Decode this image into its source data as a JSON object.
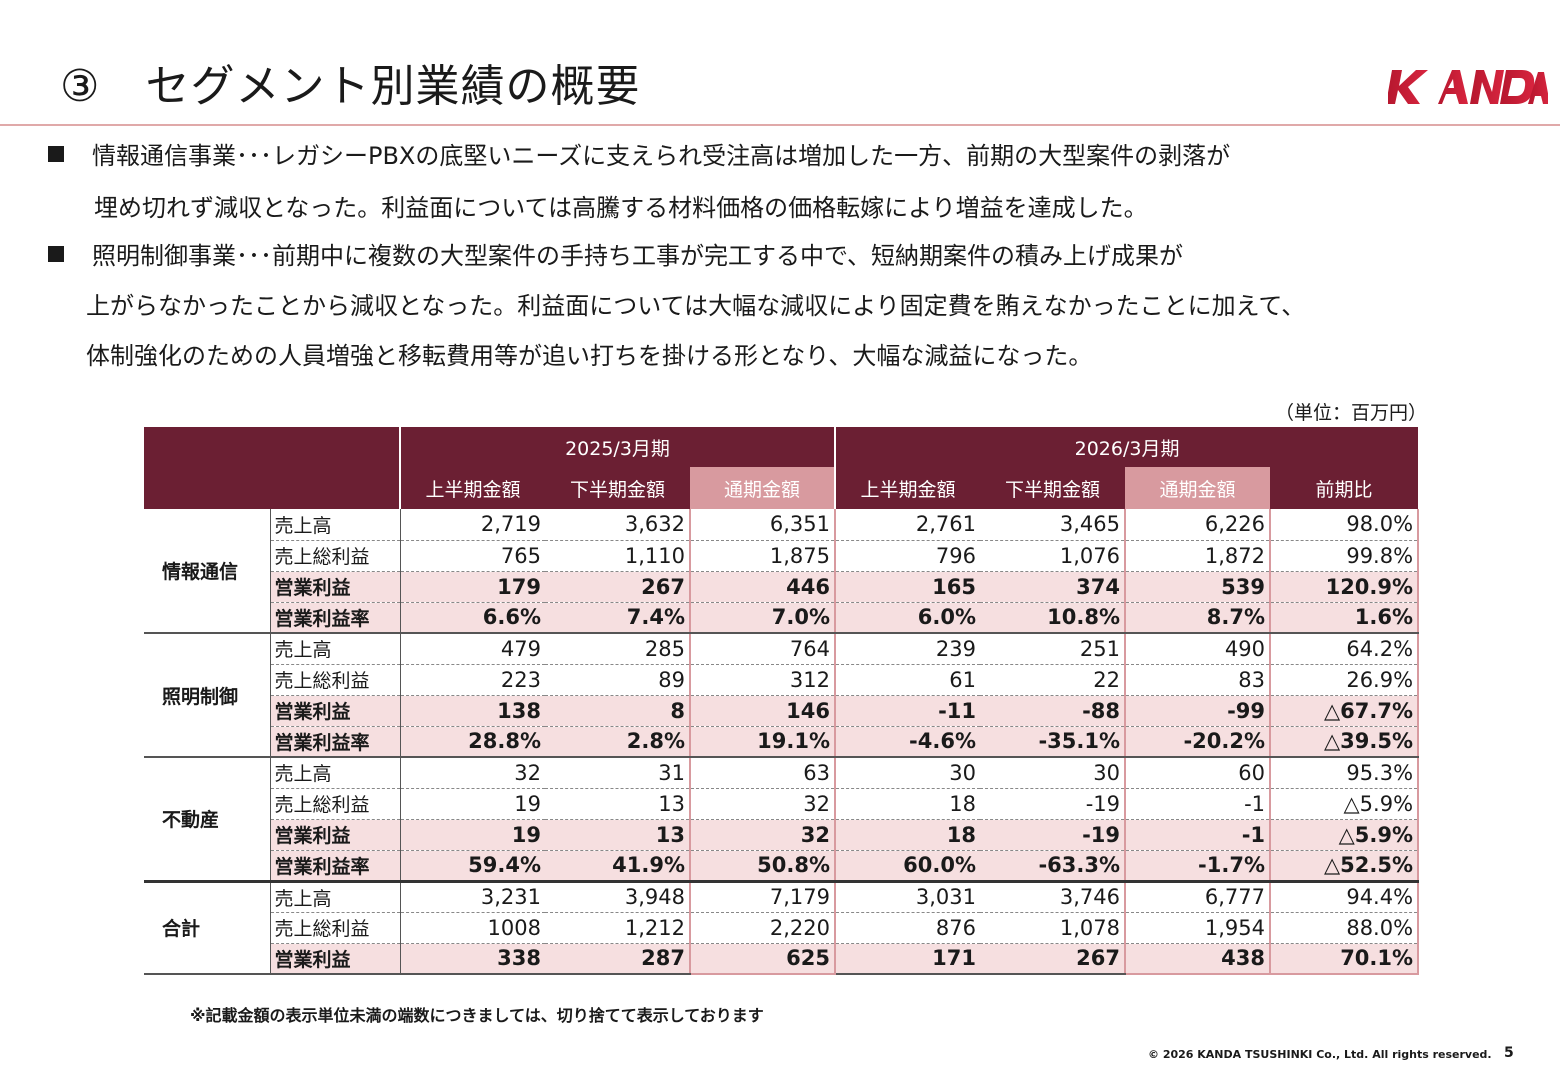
{
  "title": "③　セグメント別業績の概要",
  "logo_text": "KANDA",
  "colors": {
    "accent": "#6b1f33",
    "full_year_header": "#d89a9f",
    "highlight_row": "#f6dfe0",
    "logo": "#c8102e"
  },
  "bullets": [
    {
      "lines": [
        "情報通信事業･･･レガシーPBXの底堅いニーズに支えられ受注高は増加した一方、前期の大型案件の剥落が",
        "埋め切れず減収となった。利益面については高騰する材料価格の価格転嫁により増益を達成した。"
      ]
    },
    {
      "lines": [
        "照明制御事業･･･前期中に複数の大型案件の手持ち工事が完工する中で、短納期案件の積み上げ成果が",
        "上がらなかったことから減収となった。利益面については大幅な減収により固定費を賄えなかったことに加えて、",
        "体制強化のための人員増強と移転費用等が追い打ちを掛ける形となり、大幅な減益になった。"
      ]
    }
  ],
  "unit_label": "（単位：百万円）",
  "table": {
    "periods": [
      "2025/3月期",
      "2026/3月期"
    ],
    "columns": [
      "上半期金額",
      "下半期金額",
      "通期金額",
      "上半期金額",
      "下半期金額",
      "通期金額",
      "前期比"
    ],
    "segments": [
      {
        "name": "情報通信",
        "rows": [
          {
            "label": "売上高",
            "values": [
              "2,719",
              "3,632",
              "6,351",
              "2,761",
              "3,465",
              "6,226",
              "98.0%"
            ]
          },
          {
            "label": "売上総利益",
            "values": [
              "765",
              "1,110",
              "1,875",
              "796",
              "1,076",
              "1,872",
              "99.8%"
            ]
          },
          {
            "label": "営業利益",
            "values": [
              "179",
              "267",
              "446",
              "165",
              "374",
              "539",
              "120.9%"
            ]
          },
          {
            "label": "営業利益率",
            "values": [
              "6.6%",
              "7.4%",
              "7.0%",
              "6.0%",
              "10.8%",
              "8.7%",
              "1.6%"
            ]
          }
        ]
      },
      {
        "name": "照明制御",
        "rows": [
          {
            "label": "売上高",
            "values": [
              "479",
              "285",
              "764",
              "239",
              "251",
              "490",
              "64.2%"
            ]
          },
          {
            "label": "売上総利益",
            "values": [
              "223",
              "89",
              "312",
              "61",
              "22",
              "83",
              "26.9%"
            ]
          },
          {
            "label": "営業利益",
            "values": [
              "138",
              "8",
              "146",
              "-11",
              "-88",
              "-99",
              "△67.7%"
            ]
          },
          {
            "label": "営業利益率",
            "values": [
              "28.8%",
              "2.8%",
              "19.1%",
              "-4.6%",
              "-35.1%",
              "-20.2%",
              "△39.5%"
            ]
          }
        ]
      },
      {
        "name": "不動産",
        "rows": [
          {
            "label": "売上高",
            "values": [
              "32",
              "31",
              "63",
              "30",
              "30",
              "60",
              "95.3%"
            ]
          },
          {
            "label": "売上総利益",
            "values": [
              "19",
              "13",
              "32",
              "18",
              "-19",
              "-1",
              "△5.9%"
            ]
          },
          {
            "label": "営業利益",
            "values": [
              "19",
              "13",
              "32",
              "18",
              "-19",
              "-1",
              "△5.9%"
            ]
          },
          {
            "label": "営業利益率",
            "values": [
              "59.4%",
              "41.9%",
              "50.8%",
              "60.0%",
              "-63.3%",
              "-1.7%",
              "△52.5%"
            ]
          }
        ]
      },
      {
        "name": "合計",
        "rows": [
          {
            "label": "売上高",
            "values": [
              "3,231",
              "3,948",
              "7,179",
              "3,031",
              "3,746",
              "6,777",
              "94.4%"
            ]
          },
          {
            "label": "売上総利益",
            "values": [
              "1008",
              "1,212",
              "2,220",
              "876",
              "1,078",
              "1,954",
              "88.0%"
            ]
          },
          {
            "label": "営業利益",
            "values": [
              "338",
              "287",
              "625",
              "171",
              "267",
              "438",
              "70.1%"
            ]
          }
        ]
      }
    ]
  },
  "footnote": "※記載金額の表示単位未満の端数につきましては、切り捨てて表示しております",
  "copyright": "© 2026 KANDA TSUSHINKI Co., Ltd. All rights reserved.",
  "page_number": "5"
}
